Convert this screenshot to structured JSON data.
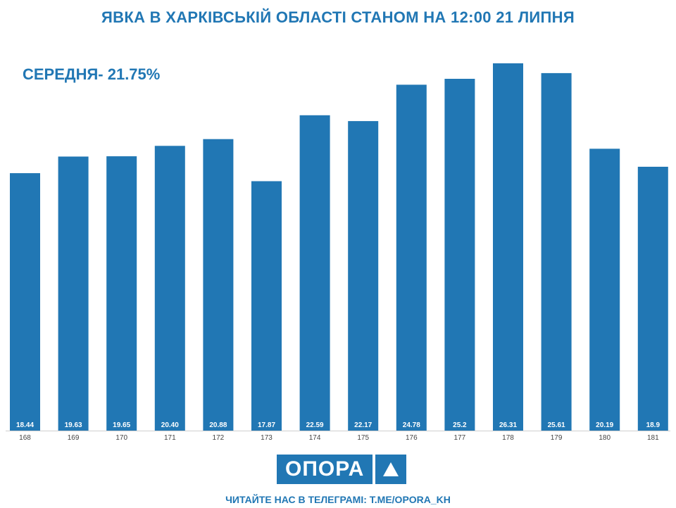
{
  "header": {
    "title": "ЯВКА В ХАРКІВСЬКІЙ ОБЛАСТІ СТАНОМ НА 12:00 21 ЛИПНЯ",
    "average": "СЕРЕДНЯ- 21.75%"
  },
  "chart_data": {
    "type": "bar",
    "title": "ЯВКА В ХАРКІВСЬКІЙ ОБЛАСТІ СТАНОМ НА 12:00 21 ЛИПНЯ",
    "xlabel": "",
    "ylabel": "",
    "categories": [
      "168",
      "169",
      "170",
      "171",
      "172",
      "173",
      "174",
      "175",
      "176",
      "177",
      "178",
      "179",
      "180",
      "181"
    ],
    "values": [
      18.44,
      19.63,
      19.65,
      20.4,
      20.88,
      17.87,
      22.59,
      22.17,
      24.78,
      25.2,
      26.31,
      25.61,
      20.19,
      18.9
    ],
    "value_labels": [
      "18.44",
      "19.63",
      "19.65",
      "20.40",
      "20.88",
      "17.87",
      "22.59",
      "22.17",
      "24.78",
      "25.2",
      "26.31",
      "25.61",
      "20.19",
      "18.9"
    ],
    "ylim": [
      0,
      26.31
    ],
    "grid": false,
    "bar_color": "#2177b4"
  },
  "footer": {
    "logo_text": "ОПОРА",
    "logo_icon": "triangle-icon",
    "caption": "ЧИТАЙТЕ НАС В ТЕЛЕГРАМІ: T.ME/OPORA_KH"
  }
}
